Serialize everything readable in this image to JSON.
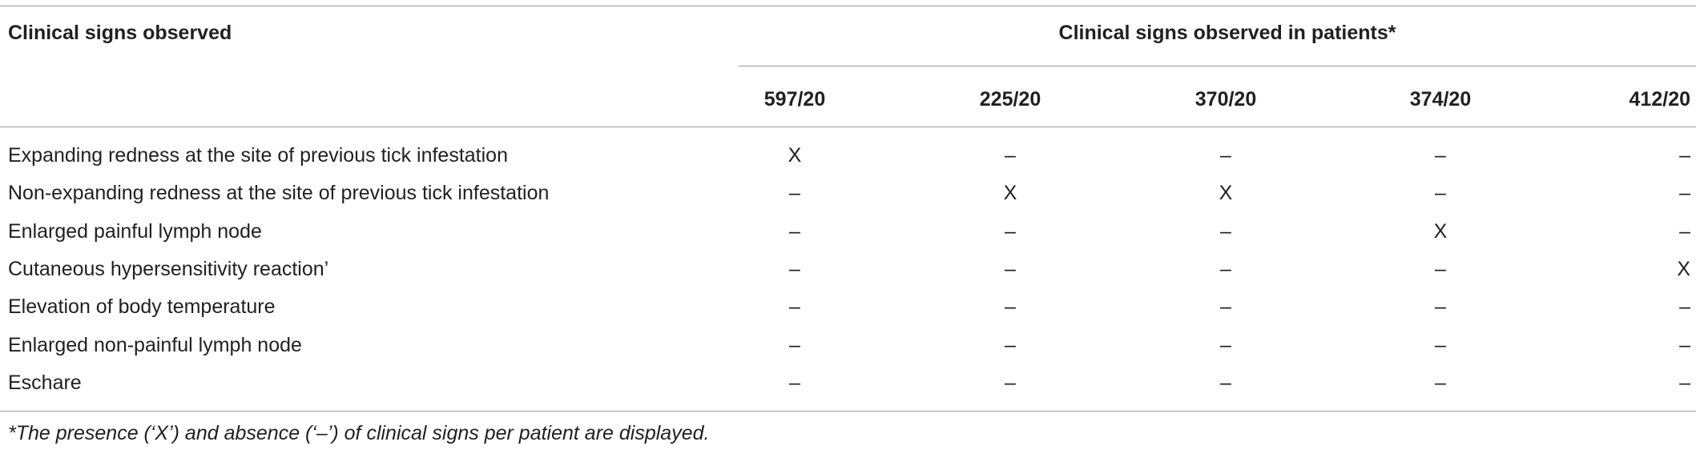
{
  "header": {
    "title": "Clinical signs observed",
    "group_title": "Clinical signs observed in patients*",
    "patients": [
      "597/20",
      "225/20",
      "370/20",
      "374/20",
      "412/20"
    ]
  },
  "rows": [
    {
      "label": "Expanding redness at the site of previous tick infestation",
      "cells": [
        "X",
        "–",
        "–",
        "–",
        "–"
      ]
    },
    {
      "label": "Non-expanding redness at the site of previous tick infestation",
      "cells": [
        "–",
        "X",
        "X",
        "–",
        "–"
      ]
    },
    {
      "label": "Enlarged painful lymph node",
      "cells": [
        "–",
        "–",
        "–",
        "X",
        "–"
      ]
    },
    {
      "label": "Cutaneous hypersensitivity reaction’",
      "cells": [
        "–",
        "–",
        "–",
        "–",
        "X"
      ]
    },
    {
      "label": "Elevation of body temperature",
      "cells": [
        "–",
        "–",
        "–",
        "–",
        "–"
      ]
    },
    {
      "label": "Enlarged non-painful lymph node",
      "cells": [
        "–",
        "–",
        "–",
        "–",
        "–"
      ]
    },
    {
      "label": "Eschare",
      "cells": [
        "–",
        "–",
        "–",
        "–",
        "–"
      ]
    }
  ],
  "footnote": "*The presence (‘X’) and absence (‘–’) of clinical signs per patient are displayed."
}
